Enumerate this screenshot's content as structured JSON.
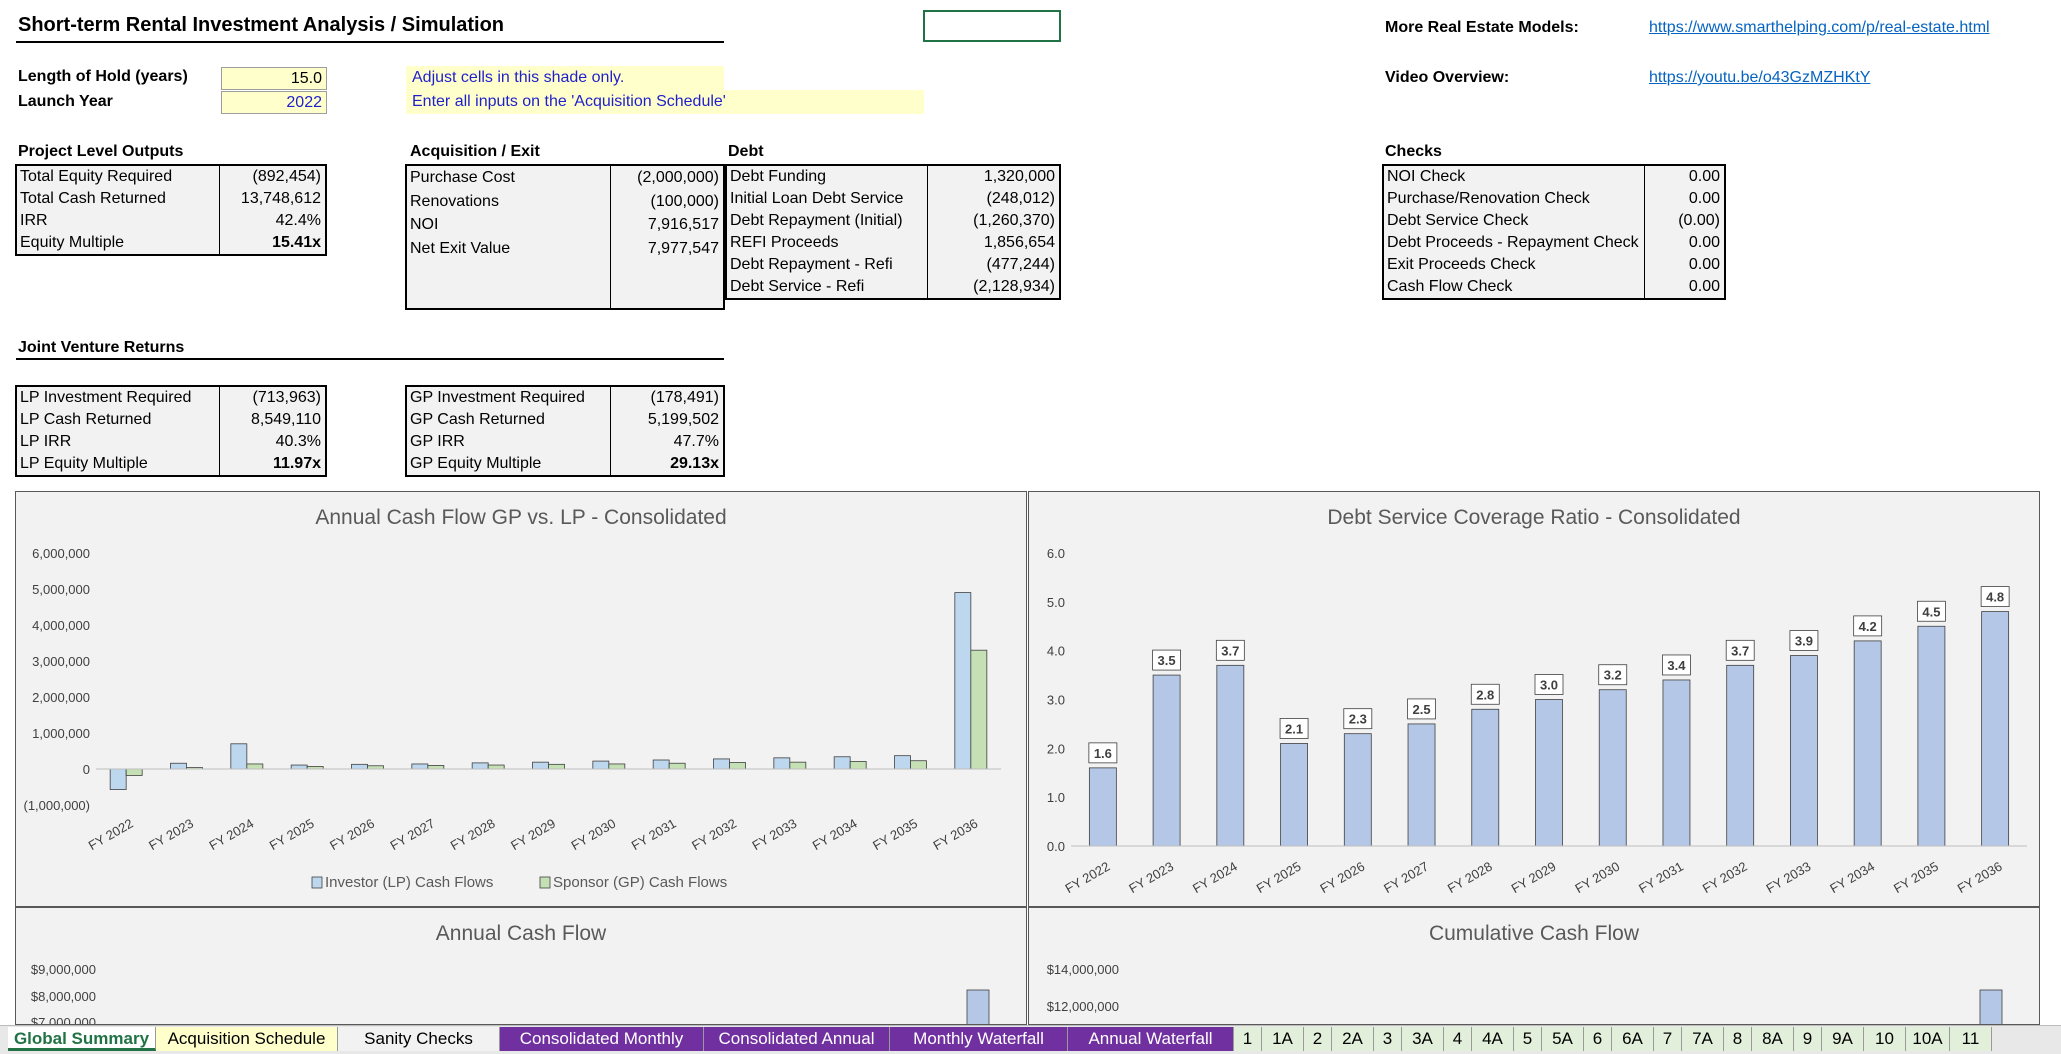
{
  "title": "Short-term Rental Investment Analysis / Simulation",
  "inputs": {
    "hold_label": "Length of Hold (years)",
    "hold_value": "15.0",
    "launch_label": "Launch Year",
    "launch_value": "2022"
  },
  "notes": {
    "n1": "Adjust cells in this shade only.",
    "n2": "Enter all inputs on the 'Acquisition Schedule'"
  },
  "links": {
    "more_label": "More Real Estate Models:",
    "more_url": "https://www.smarthelping.com/p/real-estate.html",
    "video_label": "Video Overview:",
    "video_url": "https://youtu.be/o43GzMZHKtY"
  },
  "project": {
    "heading": "Project Level Outputs",
    "rows": [
      {
        "label": "Total Equity Required",
        "value": "(892,454)"
      },
      {
        "label": "Total Cash Returned",
        "value": "13,748,612"
      },
      {
        "label": "IRR",
        "value": "42.4%"
      },
      {
        "label": "Equity Multiple",
        "value": "15.41x"
      }
    ]
  },
  "acq": {
    "heading": "Acquisition / Exit",
    "rows": [
      {
        "label": "Purchase Cost",
        "value": "(2,000,000)"
      },
      {
        "label": "Renovations",
        "value": "(100,000)"
      },
      {
        "label": "NOI",
        "value": "7,916,517"
      },
      {
        "label": "Net Exit Value",
        "value": "7,977,547"
      },
      {
        "label": "",
        "value": ""
      },
      {
        "label": "",
        "value": ""
      }
    ]
  },
  "debt": {
    "heading": "Debt",
    "rows": [
      {
        "label": "Debt Funding",
        "value": "1,320,000"
      },
      {
        "label": "Initial Loan Debt Service",
        "value": "(248,012)"
      },
      {
        "label": "Debt Repayment (Initial)",
        "value": "(1,260,370)"
      },
      {
        "label": "REFI Proceeds",
        "value": "1,856,654"
      },
      {
        "label": "Debt Repayment - Refi",
        "value": "(477,244)"
      },
      {
        "label": "Debt Service - Refi",
        "value": "(2,128,934)"
      }
    ]
  },
  "checks": {
    "heading": "Checks",
    "rows": [
      {
        "label": "NOI Check",
        "value": "0.00"
      },
      {
        "label": "Purchase/Renovation Check",
        "value": "0.00"
      },
      {
        "label": "Debt Service Check",
        "value": "(0.00)"
      },
      {
        "label": "Debt Proceeds - Repayment Check",
        "value": "0.00"
      },
      {
        "label": "Exit Proceeds Check",
        "value": "0.00"
      },
      {
        "label": "Cash Flow Check",
        "value": "0.00"
      }
    ]
  },
  "jv": {
    "heading": "Joint Venture Returns",
    "lp": [
      {
        "label": "LP Investment Required",
        "value": "(713,963)"
      },
      {
        "label": "LP Cash Returned",
        "value": "8,549,110"
      },
      {
        "label": "LP IRR",
        "value": "40.3%"
      },
      {
        "label": "LP Equity Multiple",
        "value": "11.97x"
      }
    ],
    "gp": [
      {
        "label": "GP Investment Required",
        "value": "(178,491)"
      },
      {
        "label": "GP Cash Returned",
        "value": "5,199,502"
      },
      {
        "label": "GP IRR",
        "value": "47.7%"
      },
      {
        "label": "GP Equity Multiple",
        "value": "29.13x"
      }
    ]
  },
  "chart_data": [
    {
      "type": "bar",
      "title": "Annual Cash Flow GP vs. LP - Consolidated",
      "categories": [
        "FY 2022",
        "FY 2023",
        "FY 2024",
        "FY 2025",
        "FY 2026",
        "FY 2027",
        "FY 2028",
        "FY 2029",
        "FY 2030",
        "FY 2031",
        "FY 2032",
        "FY 2033",
        "FY 2034",
        "FY 2035",
        "FY 2036"
      ],
      "series": [
        {
          "name": "Investor (LP) Cash Flows",
          "color": "#bdd7ee",
          "values": [
            -570000,
            160000,
            700000,
            110000,
            130000,
            140000,
            170000,
            190000,
            220000,
            250000,
            280000,
            310000,
            340000,
            370000,
            4900000
          ]
        },
        {
          "name": "Sponsor (GP) Cash Flows",
          "color": "#c5e0b4",
          "values": [
            -180000,
            40000,
            140000,
            70000,
            90000,
            100000,
            110000,
            130000,
            140000,
            160000,
            180000,
            190000,
            210000,
            230000,
            3300000
          ]
        }
      ],
      "ylim": [
        -1000000,
        6000000
      ],
      "yticks": [
        "(1,000,000)",
        "0",
        "1,000,000",
        "2,000,000",
        "3,000,000",
        "4,000,000",
        "5,000,000",
        "6,000,000"
      ],
      "legend": "bottom"
    },
    {
      "type": "bar",
      "title": "Debt Service Coverage Ratio - Consolidated",
      "categories": [
        "FY 2022",
        "FY 2023",
        "FY 2024",
        "FY 2025",
        "FY 2026",
        "FY 2027",
        "FY 2028",
        "FY 2029",
        "FY 2030",
        "FY 2031",
        "FY 2032",
        "FY 2033",
        "FY 2034",
        "FY 2035",
        "FY 2036"
      ],
      "series": [
        {
          "name": "DSCR",
          "color": "#b4c7e7",
          "values": [
            1.6,
            3.5,
            3.7,
            2.1,
            2.3,
            2.5,
            2.8,
            3.0,
            3.2,
            3.4,
            3.7,
            3.9,
            4.2,
            4.5,
            4.8
          ]
        }
      ],
      "labels": [
        "1.6",
        "3.5",
        "3.7",
        "2.1",
        "2.3",
        "2.5",
        "2.8",
        "3.0",
        "3.2",
        "3.4",
        "3.7",
        "3.9",
        "4.2",
        "4.5",
        "4.8"
      ],
      "ylim": [
        0,
        6
      ],
      "yticks": [
        "0.0",
        "1.0",
        "2.0",
        "3.0",
        "4.0",
        "5.0",
        "6.0"
      ]
    },
    {
      "type": "bar",
      "title": "Annual Cash Flow",
      "yticks_visible": [
        "$9,000,000",
        "$8,000,000",
        "$7,000,000"
      ],
      "last_value": 8200000
    },
    {
      "type": "bar",
      "title": "Cumulative Cash Flow",
      "yticks_visible": [
        "$14,000,000",
        "$12,000,000"
      ],
      "last_value": 12900000
    }
  ],
  "tabs": [
    {
      "label": "Global Summary",
      "style": "active"
    },
    {
      "label": "Acquisition Schedule",
      "style": "yellow"
    },
    {
      "label": "Sanity Checks",
      "style": "plain"
    },
    {
      "label": "Consolidated Monthly",
      "style": "purple"
    },
    {
      "label": "Consolidated Annual",
      "style": "purple"
    },
    {
      "label": "Monthly Waterfall",
      "style": "purple"
    },
    {
      "label": "Annual Waterfall",
      "style": "purple"
    },
    {
      "label": "1",
      "style": "green"
    },
    {
      "label": "1A",
      "style": "green"
    },
    {
      "label": "2",
      "style": "green"
    },
    {
      "label": "2A",
      "style": "green"
    },
    {
      "label": "3",
      "style": "green"
    },
    {
      "label": "3A",
      "style": "green"
    },
    {
      "label": "4",
      "style": "green"
    },
    {
      "label": "4A",
      "style": "green"
    },
    {
      "label": "5",
      "style": "green"
    },
    {
      "label": "5A",
      "style": "green"
    },
    {
      "label": "6",
      "style": "green"
    },
    {
      "label": "6A",
      "style": "green"
    },
    {
      "label": "7",
      "style": "green"
    },
    {
      "label": "7A",
      "style": "green"
    },
    {
      "label": "8",
      "style": "green"
    },
    {
      "label": "8A",
      "style": "green"
    },
    {
      "label": "9",
      "style": "green"
    },
    {
      "label": "9A",
      "style": "green"
    },
    {
      "label": "10",
      "style": "green"
    },
    {
      "label": "10A",
      "style": "green"
    },
    {
      "label": "11",
      "style": "green"
    }
  ]
}
